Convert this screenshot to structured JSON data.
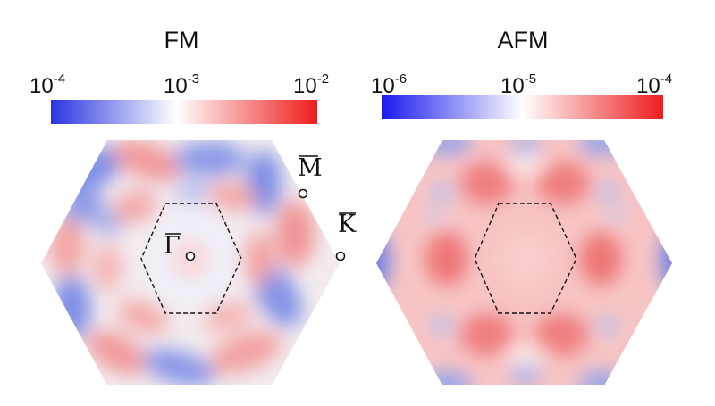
{
  "panels": [
    {
      "title": "FM",
      "colorbar": {
        "ticks": [
          {
            "base": "10",
            "exp": "-4"
          },
          {
            "base": "10",
            "exp": "-3"
          },
          {
            "base": "10",
            "exp": "-2"
          }
        ],
        "colors": [
          "#2a35e0",
          "#ffffff",
          "#ee1c1c"
        ]
      },
      "points": [
        {
          "bar": "M",
          "sub": "",
          "label": "M̄"
        },
        {
          "bar": "K",
          "sub": "",
          "label": "K̄"
        },
        {
          "bar": "Γ",
          "sub": "",
          "label": "Γ̄"
        }
      ]
    },
    {
      "title": "AFM",
      "colorbar": {
        "ticks": [
          {
            "base": "10",
            "exp": "-6"
          },
          {
            "base": "10",
            "exp": "-5"
          },
          {
            "base": "10",
            "exp": "-4"
          }
        ],
        "colors": [
          "#1a1aee",
          "#ffffff",
          "#ee1c1c"
        ]
      }
    }
  ]
}
